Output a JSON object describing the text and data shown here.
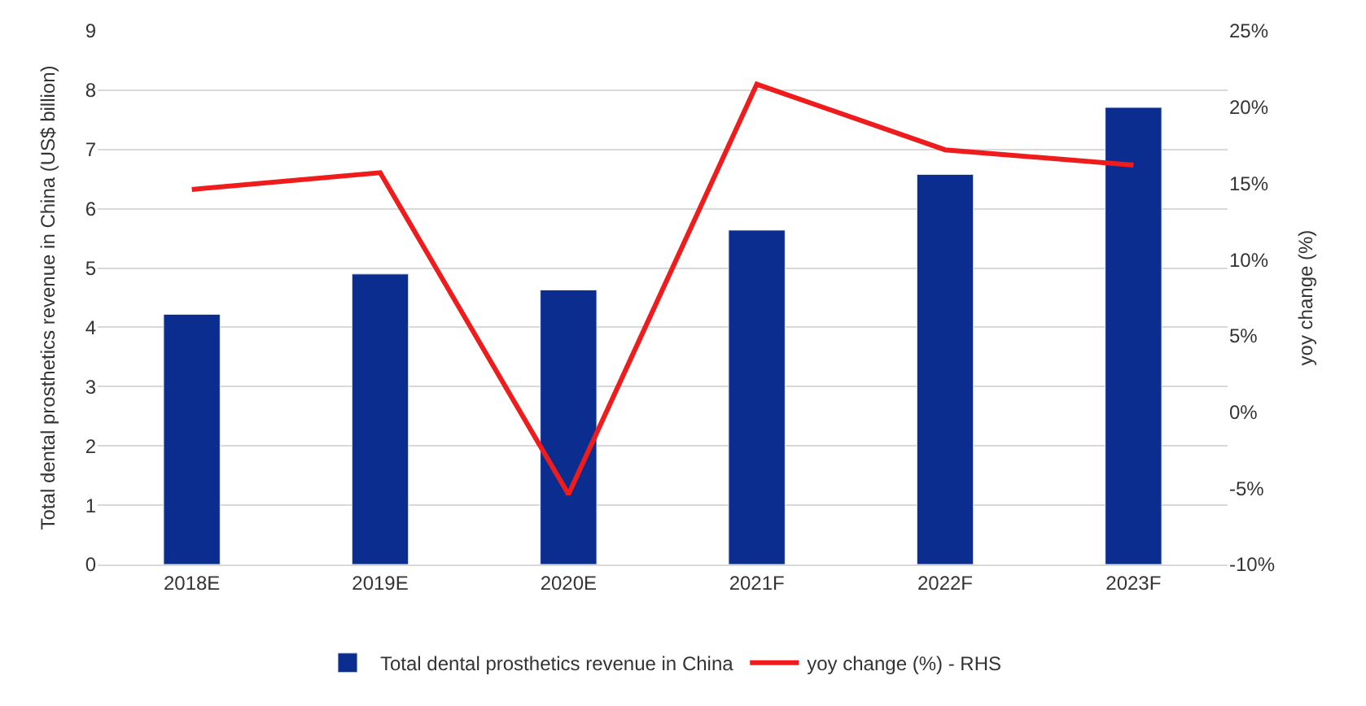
{
  "chart_data": {
    "type": "bar",
    "ylabel": "Total dental prosthetics revenue in China (US$ billion)",
    "y2label": "yoy change (%)",
    "categories": [
      "2018E",
      "2019E",
      "2020E",
      "2021F",
      "2022F",
      "2023F"
    ],
    "series": [
      {
        "name": "Total dental prosthetics revenue in China",
        "color": "#0b2d8f",
        "values": [
          4.22,
          4.9,
          4.63,
          5.64,
          6.58,
          7.71
        ]
      },
      {
        "name": "yoy change (%) - RHS",
        "color": "#ee1c1c",
        "type": "line",
        "axis": "y2",
        "marker": "none",
        "line_style": "solid",
        "values": [
          14.6,
          15.7,
          -5.4,
          21.5,
          17.2,
          16.2
        ]
      }
    ],
    "ylim": [
      0,
      9
    ],
    "yticks": [
      0,
      1,
      2,
      3,
      4,
      5,
      6,
      7,
      8,
      9
    ],
    "y2lim": [
      -10,
      25
    ],
    "y2ticks": [
      {
        "value": -10,
        "label": "-10%"
      },
      {
        "value": -5,
        "label": "-5%"
      },
      {
        "value": 0,
        "label": "0%"
      },
      {
        "value": 5,
        "label": "5%"
      },
      {
        "value": 10,
        "label": "10%"
      },
      {
        "value": 15,
        "label": "15%"
      },
      {
        "value": 20,
        "label": "20%"
      },
      {
        "value": 25,
        "label": "25%"
      }
    ],
    "grid": "y",
    "legend": "bottom"
  }
}
